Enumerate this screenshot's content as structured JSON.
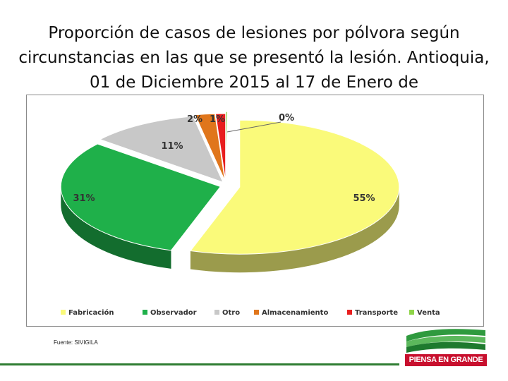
{
  "title": "Proporción de casos de lesiones por pólvora según circunstancias en las que se presentó la lesión. Antioquia, 01 de Diciembre 2015 al 17 de Enero de",
  "source": "Fuente: SIVIGILA",
  "logo": {
    "text": "PIENSA EN GRANDE"
  },
  "chart_data": {
    "type": "pie",
    "style": "3d-exploded",
    "legend_position": "bottom",
    "categories": [
      "Fabricación",
      "Observador",
      "Otro",
      "Almacenamiento",
      "Transporte",
      "Venta"
    ],
    "values": [
      55,
      31,
      11,
      2,
      1,
      0
    ],
    "data_labels": [
      "55%",
      "31%",
      "11%",
      "2%",
      "1%",
      "0%"
    ],
    "colors": [
      "#fafa7a",
      "#1fb04a",
      "#c8c8c8",
      "#e0761c",
      "#e81e1e",
      "#8ed448"
    ]
  }
}
